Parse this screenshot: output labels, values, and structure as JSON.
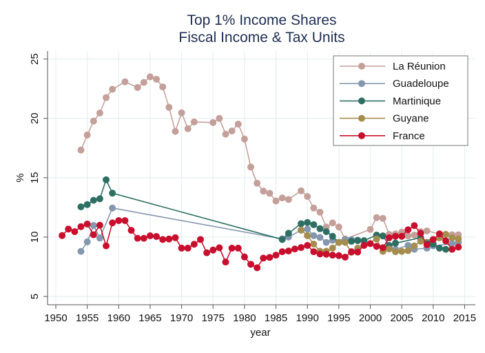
{
  "chart_data": {
    "type": "line",
    "title": "Top 1% Income Shares",
    "subtitle": "Fiscal Income & Tax Units",
    "xlabel": "year",
    "ylabel": "%",
    "xlim": [
      1950,
      2015
    ],
    "ylim": [
      5,
      25
    ],
    "xticks": [
      1950,
      1955,
      1960,
      1965,
      1970,
      1975,
      1980,
      1985,
      1990,
      1995,
      2000,
      2005,
      2010,
      2015
    ],
    "yticks": [
      5,
      10,
      15,
      20,
      25
    ],
    "grid": true,
    "legend_position": "top-right",
    "series": [
      {
        "name": "La Réunion",
        "color": "#c4a09a",
        "points": [
          [
            1954,
            17.33
          ],
          [
            1955,
            18.6
          ],
          [
            1956,
            19.77
          ],
          [
            1957,
            20.45
          ],
          [
            1958,
            21.75
          ],
          [
            1959,
            22.45
          ],
          [
            1961,
            23.08
          ],
          [
            1963,
            22.6
          ],
          [
            1964,
            23.03
          ],
          [
            1965,
            23.5
          ],
          [
            1966,
            23.3
          ],
          [
            1967,
            22.65
          ],
          [
            1968,
            20.93
          ],
          [
            1969,
            18.9
          ],
          [
            1970,
            20.47
          ],
          [
            1971,
            19.13
          ],
          [
            1972,
            19.7
          ],
          [
            1975,
            19.65
          ],
          [
            1976,
            20.0
          ],
          [
            1977,
            18.67
          ],
          [
            1978,
            18.94
          ],
          [
            1979,
            19.52
          ],
          [
            1980,
            18.26
          ],
          [
            1981,
            15.9
          ],
          [
            1982,
            14.54
          ],
          [
            1983,
            13.87
          ],
          [
            1984,
            13.69
          ],
          [
            1985,
            13.04
          ],
          [
            1986,
            13.3
          ],
          [
            1987,
            13.17
          ],
          [
            1989,
            13.9
          ],
          [
            1990,
            13.42
          ],
          [
            1991,
            12.45
          ],
          [
            1992,
            12.1
          ],
          [
            1993,
            10.85
          ],
          [
            1994,
            11.2
          ],
          [
            1995,
            10.85
          ],
          [
            1996,
            9.84
          ],
          [
            2000,
            10.65
          ],
          [
            2001,
            11.64
          ],
          [
            2002,
            11.58
          ],
          [
            2003,
            10.23
          ],
          [
            2004,
            10.27
          ],
          [
            2005,
            10.42
          ],
          [
            2006,
            10.1
          ],
          [
            2007,
            10.17
          ],
          [
            2008,
            10.46
          ],
          [
            2009,
            10.52
          ],
          [
            2011,
            10.27
          ],
          [
            2012,
            10.23
          ],
          [
            2013,
            10.2
          ],
          [
            2014,
            10.2
          ]
        ]
      },
      {
        "name": "Guadeloupe",
        "color": "#8497ae",
        "points": [
          [
            1954,
            8.8
          ],
          [
            1955,
            9.6
          ],
          [
            1956,
            10.98
          ],
          [
            1957,
            9.92
          ],
          [
            1959,
            12.45
          ],
          [
            1986,
            9.85
          ],
          [
            1987,
            10.0
          ],
          [
            1989,
            10.59
          ],
          [
            1990,
            10.67
          ],
          [
            1991,
            10.12
          ],
          [
            1992,
            9.97
          ],
          [
            1993,
            9.55
          ],
          [
            1994,
            9.74
          ],
          [
            1996,
            9.78
          ],
          [
            1997,
            9.78
          ],
          [
            1998,
            9.75
          ],
          [
            2004,
            8.97
          ],
          [
            2006,
            9.3
          ],
          [
            2007,
            8.97
          ],
          [
            2009,
            9.07
          ],
          [
            2010,
            9.26
          ],
          [
            2013,
            9.45
          ],
          [
            2014,
            9.55
          ]
        ]
      },
      {
        "name": "Martinique",
        "color": "#2e6f63",
        "points": [
          [
            1954,
            12.55
          ],
          [
            1955,
            12.74
          ],
          [
            1956,
            13.1
          ],
          [
            1957,
            13.23
          ],
          [
            1958,
            14.83
          ],
          [
            1959,
            13.7
          ],
          [
            1986,
            9.8
          ],
          [
            1987,
            10.32
          ],
          [
            1989,
            11.13
          ],
          [
            1990,
            11.23
          ],
          [
            1991,
            11.05
          ],
          [
            1992,
            10.71
          ],
          [
            1993,
            10.46
          ],
          [
            1994,
            10.07
          ],
          [
            1995,
            9.55
          ],
          [
            1997,
            9.65
          ],
          [
            1998,
            9.7
          ],
          [
            1999,
            9.7
          ],
          [
            2001,
            10.17
          ],
          [
            2002,
            10.1
          ],
          [
            2003,
            9.3
          ],
          [
            2004,
            9.49
          ],
          [
            2008,
            9.94
          ],
          [
            2009,
            9.55
          ],
          [
            2010,
            9.41
          ],
          [
            2011,
            9.07
          ],
          [
            2012,
            8.97
          ]
        ]
      },
      {
        "name": "Guyane",
        "color": "#a48d4e",
        "points": [
          [
            1989,
            10.59
          ],
          [
            1990,
            10.12
          ],
          [
            1991,
            9.41
          ],
          [
            1992,
            8.81
          ],
          [
            1993,
            8.81
          ],
          [
            1994,
            9.07
          ],
          [
            1995,
            9.55
          ],
          [
            1996,
            9.55
          ],
          [
            1997,
            8.72
          ],
          [
            1998,
            9.07
          ],
          [
            2001,
            9.84
          ],
          [
            2002,
            8.8
          ],
          [
            2003,
            9.0
          ],
          [
            2004,
            8.77
          ],
          [
            2005,
            8.8
          ],
          [
            2006,
            8.86
          ],
          [
            2007,
            9.26
          ],
          [
            2008,
            9.65
          ],
          [
            2011,
            9.94
          ],
          [
            2012,
            10.23
          ],
          [
            2013,
            9.94
          ],
          [
            2014,
            9.84
          ]
        ]
      },
      {
        "name": "France",
        "color": "#c8102e",
        "points": [
          [
            1951,
            10.13
          ],
          [
            1952,
            10.68
          ],
          [
            1953,
            10.46
          ],
          [
            1954,
            10.88
          ],
          [
            1955,
            11.1
          ],
          [
            1956,
            10.2
          ],
          [
            1957,
            11.0
          ],
          [
            1958,
            9.26
          ],
          [
            1959,
            11.2
          ],
          [
            1960,
            11.39
          ],
          [
            1961,
            11.39
          ],
          [
            1962,
            10.57
          ],
          [
            1963,
            9.9
          ],
          [
            1964,
            9.9
          ],
          [
            1965,
            10.11
          ],
          [
            1966,
            10.05
          ],
          [
            1967,
            9.8
          ],
          [
            1968,
            9.84
          ],
          [
            1969,
            9.95
          ],
          [
            1970,
            9.07
          ],
          [
            1971,
            9.07
          ],
          [
            1972,
            9.4
          ],
          [
            1973,
            9.8
          ],
          [
            1974,
            8.68
          ],
          [
            1975,
            8.91
          ],
          [
            1976,
            9.1
          ],
          [
            1977,
            7.9
          ],
          [
            1978,
            9.07
          ],
          [
            1979,
            9.07
          ],
          [
            1980,
            8.33
          ],
          [
            1981,
            7.71
          ],
          [
            1982,
            7.42
          ],
          [
            1983,
            8.23
          ],
          [
            1984,
            8.29
          ],
          [
            1985,
            8.48
          ],
          [
            1986,
            8.77
          ],
          [
            1987,
            8.83
          ],
          [
            1988,
            9.0
          ],
          [
            1989,
            9.12
          ],
          [
            1990,
            9.3
          ],
          [
            1991,
            8.77
          ],
          [
            1992,
            8.58
          ],
          [
            1993,
            8.56
          ],
          [
            1994,
            8.48
          ],
          [
            1995,
            8.44
          ],
          [
            1996,
            8.31
          ],
          [
            1997,
            8.77
          ],
          [
            1998,
            8.74
          ],
          [
            1999,
            9.3
          ],
          [
            2000,
            9.45
          ],
          [
            2001,
            9.22
          ],
          [
            2002,
            9.11
          ],
          [
            2003,
            9.94
          ],
          [
            2004,
            10.07
          ],
          [
            2005,
            10.07
          ],
          [
            2006,
            10.62
          ],
          [
            2007,
            10.97
          ],
          [
            2008,
            10.32
          ],
          [
            2009,
            9.36
          ],
          [
            2010,
            9.8
          ],
          [
            2011,
            10.27
          ],
          [
            2012,
            9.68
          ],
          [
            2013,
            8.97
          ],
          [
            2014,
            9.16
          ]
        ]
      }
    ]
  }
}
